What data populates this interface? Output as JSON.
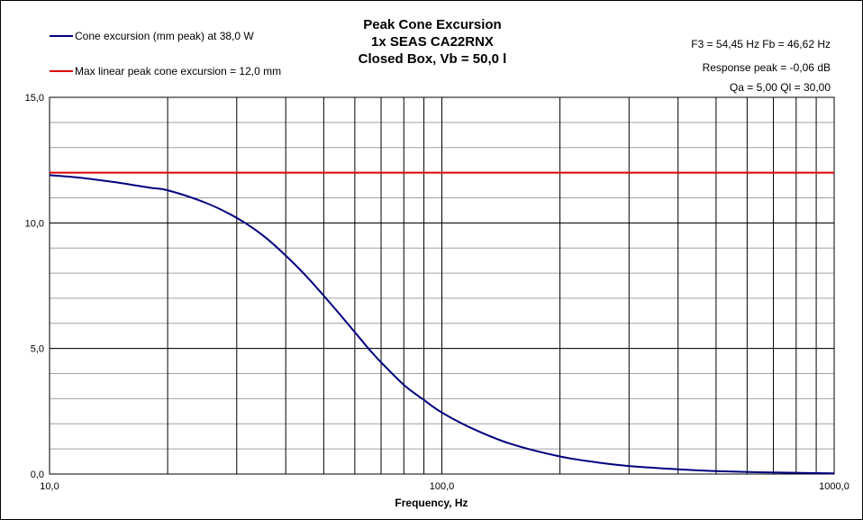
{
  "chart_data": {
    "type": "line",
    "title_lines": [
      "Peak Cone Excursion",
      "1x SEAS CA22RNX",
      "Closed Box, Vb = 50,0 l"
    ],
    "xlabel": "Frequency, Hz",
    "ylabel": "",
    "x_scale": "log",
    "xlim": [
      10,
      1000
    ],
    "ylim": [
      0,
      15
    ],
    "x_ticks": [
      {
        "value": 10,
        "label": "10,0"
      },
      {
        "value": 100,
        "label": "100,0"
      },
      {
        "value": 1000,
        "label": "1000,0"
      }
    ],
    "y_ticks": [
      {
        "value": 0,
        "label": "0,0"
      },
      {
        "value": 5,
        "label": "5,0"
      },
      {
        "value": 10,
        "label": "10,0"
      },
      {
        "value": 15,
        "label": "15,0"
      }
    ],
    "grid": true,
    "legend_position": "top-left",
    "series": [
      {
        "name": "Cone excursion (mm peak) at 38,0 W",
        "color": "#00007f",
        "x": [
          10,
          12,
          15,
          18,
          20,
          25,
          30,
          35,
          40,
          45,
          50,
          55,
          60,
          65,
          70,
          80,
          90,
          100,
          120,
          150,
          200,
          250,
          300,
          400,
          500,
          700,
          1000
        ],
        "y": [
          11.9,
          11.8,
          11.6,
          11.4,
          11.3,
          10.8,
          10.2,
          9.5,
          8.7,
          7.9,
          7.1,
          6.35,
          5.65,
          5.0,
          4.45,
          3.55,
          2.95,
          2.45,
          1.8,
          1.2,
          0.7,
          0.46,
          0.32,
          0.19,
          0.12,
          0.06,
          0.03
        ]
      },
      {
        "name": "Max linear peak cone excursion = 12,0 mm",
        "color": "#e00000",
        "x": [
          10,
          1000
        ],
        "y": [
          12,
          12
        ]
      }
    ],
    "annotations": [
      "F3 = 54,45 Hz  Fb = 46,62 Hz",
      "Response peak = -0,06 dB",
      "Qa = 5,00  Ql = 30,00"
    ]
  }
}
